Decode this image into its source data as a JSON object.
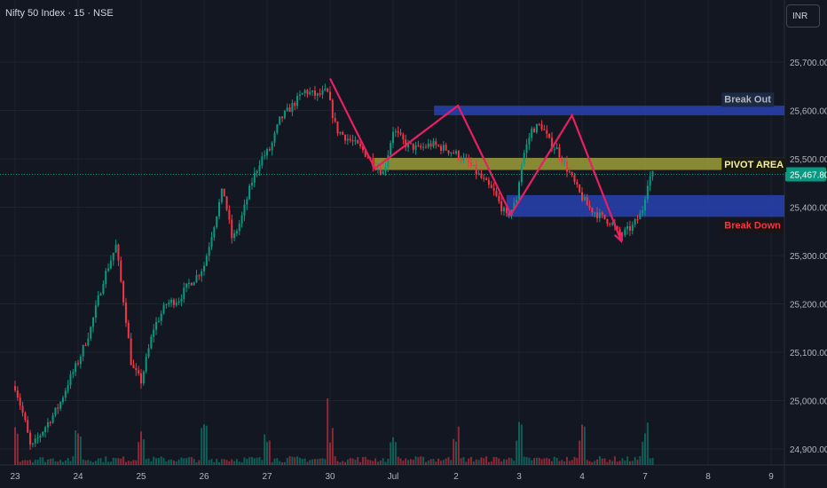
{
  "header": {
    "title": "Nifty 50 Index · 15 · NSE",
    "currency": "INR"
  },
  "colors": {
    "background": "#131722",
    "grid": "#1e222d",
    "up": "#089981",
    "down": "#f23645",
    "pattern": "#e91e63",
    "zone_blue": "#2b4acb",
    "zone_yellow": "#b5b63b",
    "current_price": "#089981"
  },
  "chart_data": {
    "type": "candlestick",
    "symbol": "Nifty 50 Index",
    "interval": "15",
    "exchange": "NSE",
    "ylim": [
      24870,
      25790
    ],
    "y_ticks": [
      {
        "value": 25700,
        "label": "25,700.00"
      },
      {
        "value": 25600,
        "label": "25,600.00"
      },
      {
        "value": 25500,
        "label": "25,500.00"
      },
      {
        "value": 25400,
        "label": "25,400.00"
      },
      {
        "value": 25300,
        "label": "25,300.00"
      },
      {
        "value": 25200,
        "label": "25,200.00"
      },
      {
        "value": 25100,
        "label": "25,100.00"
      },
      {
        "value": 25000,
        "label": "25,000.00"
      },
      {
        "value": 24900,
        "label": "24,900.00"
      }
    ],
    "x_ticks": [
      "23",
      "24",
      "25",
      "26",
      "27",
      "30",
      "Jul",
      "2",
      "3",
      "4",
      "7",
      "8",
      "9"
    ],
    "x_range": [
      0,
      13.2
    ],
    "x_tick_positions": [
      0,
      1,
      2,
      3,
      4,
      5,
      6,
      7,
      8,
      9,
      10,
      11,
      12
    ],
    "current_price": {
      "value": 25467.8,
      "label": "25,467.80"
    },
    "close_path": [
      [
        0,
        25030
      ],
      [
        0.15,
        24960
      ],
      [
        0.25,
        24900
      ],
      [
        0.45,
        24940
      ],
      [
        0.7,
        24990
      ],
      [
        0.85,
        25040
      ],
      [
        1.0,
        25080
      ],
      [
        1.2,
        25150
      ],
      [
        1.4,
        25250
      ],
      [
        1.6,
        25320
      ],
      [
        1.75,
        25180
      ],
      [
        1.85,
        25070
      ],
      [
        2.0,
        25040
      ],
      [
        2.2,
        25150
      ],
      [
        2.4,
        25200
      ],
      [
        2.6,
        25210
      ],
      [
        2.75,
        25240
      ],
      [
        2.9,
        25260
      ],
      [
        3.0,
        25280
      ],
      [
        3.15,
        25360
      ],
      [
        3.3,
        25440
      ],
      [
        3.45,
        25330
      ],
      [
        3.6,
        25380
      ],
      [
        3.75,
        25450
      ],
      [
        3.9,
        25500
      ],
      [
        4.05,
        25520
      ],
      [
        4.2,
        25580
      ],
      [
        4.4,
        25610
      ],
      [
        4.6,
        25640
      ],
      [
        4.8,
        25630
      ],
      [
        4.95,
        25640
      ],
      [
        5.1,
        25560
      ],
      [
        5.3,
        25540
      ],
      [
        5.5,
        25520
      ],
      [
        5.7,
        25490
      ],
      [
        5.85,
        25470
      ],
      [
        6.0,
        25560
      ],
      [
        6.2,
        25530
      ],
      [
        6.4,
        25520
      ],
      [
        6.6,
        25530
      ],
      [
        6.85,
        25520
      ],
      [
        7.0,
        25510
      ],
      [
        7.2,
        25490
      ],
      [
        7.4,
        25460
      ],
      [
        7.6,
        25430
      ],
      [
        7.8,
        25380
      ],
      [
        7.95,
        25410
      ],
      [
        8.05,
        25500
      ],
      [
        8.2,
        25560
      ],
      [
        8.35,
        25570
      ],
      [
        8.5,
        25530
      ],
      [
        8.6,
        25520
      ],
      [
        8.8,
        25470
      ],
      [
        8.95,
        25430
      ],
      [
        9.1,
        25400
      ],
      [
        9.3,
        25380
      ],
      [
        9.45,
        25370
      ],
      [
        9.6,
        25340
      ],
      [
        9.8,
        25360
      ],
      [
        9.95,
        25390
      ],
      [
        10.05,
        25460
      ],
      [
        10.15,
        25470
      ]
    ],
    "volume_ylim": [
      0,
      100
    ],
    "zones": [
      {
        "name": "Break Out zone",
        "y1": 25590,
        "y2": 25610,
        "x1": 6.65,
        "x2": 13.2,
        "color": "#2b4acb"
      },
      {
        "name": "Pivot area zone",
        "y1": 25477,
        "y2": 25502,
        "x1": 5.7,
        "x2": 13.2,
        "color": "#b5b63b"
      },
      {
        "name": "Break Down zone",
        "y1": 25380,
        "y2": 25425,
        "x1": 7.8,
        "x2": 13.2,
        "color": "#2b4acb"
      }
    ],
    "pattern_lines": [
      [
        [
          5.0,
          25666
        ],
        [
          5.71,
          25480
        ],
        [
          7.03,
          25610
        ],
        [
          7.87,
          25385
        ],
        [
          8.84,
          25590
        ],
        [
          9.62,
          25330
        ]
      ]
    ],
    "annotations": [
      {
        "text": "Break Out",
        "x": 11.3,
        "y": 25624,
        "color": "#b2b5be",
        "bg": "#1c2a44"
      },
      {
        "text": "PIVOT AREA",
        "x": 11.3,
        "y": 25489,
        "color": "#f5f29c",
        "bg": "#1a1a10"
      },
      {
        "text": "Break Down",
        "x": 11.3,
        "y": 25363,
        "color": "#f23645",
        "bg": "#1a1416"
      }
    ]
  }
}
